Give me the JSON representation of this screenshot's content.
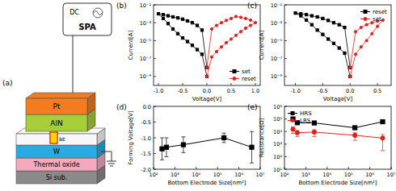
{
  "schematic": {
    "title": "(a)",
    "instrument": [
      "DC",
      "SPA"
    ],
    "electrode": "BE",
    "layers": [
      {
        "label": "Pt",
        "color": "#f47c20"
      },
      {
        "label": "AlN",
        "color": "#a6ce39"
      },
      {
        "label": "W",
        "color": "#29abe2"
      },
      {
        "label": "Thermal oxide",
        "color": "#f4a9bd"
      },
      {
        "label": "Si sub.",
        "color": "#8a8a8a"
      }
    ]
  },
  "chart_data": [
    {
      "type": "line",
      "title": "(b)",
      "x_label": "Voltage[V]",
      "y_label": "Current[A]",
      "log": "y",
      "legend": "lower right",
      "xlim": [
        -1.1,
        1.1
      ],
      "ylim": [
        1e-10,
        0.1
      ],
      "xticks": [
        {
          "value": -1,
          "label": "-1.0"
        },
        {
          "value": -0.5,
          "label": "-0.5"
        },
        {
          "value": 0,
          "label": "0.0"
        },
        {
          "value": 0.5,
          "label": "0.5"
        },
        {
          "value": 1,
          "label": "1.0"
        }
      ],
      "yticks": [
        {
          "value": 0.1,
          "label": "10⁻¹"
        },
        {
          "value": 0.001,
          "label": "10⁻³"
        },
        {
          "value": 1e-05,
          "label": "10⁻⁵"
        },
        {
          "value": 1e-07,
          "label": "10⁻⁷"
        },
        {
          "value": 1e-09,
          "label": "10⁻⁹"
        }
      ],
      "series": [
        {
          "name": "set",
          "color": "#000000",
          "marker": "square",
          "x": [
            0,
            -0.1,
            -0.2,
            -0.3,
            -0.4,
            -0.5,
            -0.6,
            -0.7,
            -0.8,
            -0.9,
            -1.0,
            -0.9,
            -0.8,
            -0.7,
            -0.6,
            -0.5,
            -0.4,
            -0.3,
            -0.2,
            -0.1,
            0
          ],
          "values": [
            1e-09,
            3e-07,
            1e-06,
            3e-06,
            8e-06,
            2e-05,
            6e-05,
            0.0002,
            0.0008,
            0.003,
            0.01,
            0.008,
            0.006,
            0.0045,
            0.0035,
            0.0025,
            0.0016,
            0.001,
            0.0005,
            0.00015,
            1e-08
          ]
        },
        {
          "name": "reset",
          "color": "#e0201b",
          "marker": "circle",
          "x": [
            0,
            0.1,
            0.2,
            0.3,
            0.4,
            0.5,
            0.6,
            0.7,
            0.8,
            0.9,
            1.0,
            0.9,
            0.8,
            0.7,
            0.6,
            0.5,
            0.4,
            0.3,
            0.2,
            0.1,
            0
          ],
          "values": [
            1e-08,
            0.0002,
            0.0005,
            0.001,
            0.0018,
            0.003,
            0.005,
            0.004,
            0.003,
            0.002,
            0.001,
            0.0005,
            0.00025,
            0.0001,
            4e-05,
            1.5e-05,
            6e-06,
            2e-06,
            6e-07,
            1.5e-07,
            1e-09
          ]
        }
      ]
    },
    {
      "type": "line",
      "title": "(c)",
      "x_label": "Voltage[V]",
      "y_label": "Current[A]",
      "log": "y",
      "legend": "upper right",
      "xlim": [
        -1.2,
        0.75
      ],
      "ylim": [
        1e-10,
        0.1
      ],
      "xticks": [
        {
          "value": -1,
          "label": "-1.0"
        },
        {
          "value": -0.5,
          "label": "-0.5"
        },
        {
          "value": 0,
          "label": "0.0"
        },
        {
          "value": 0.5,
          "label": "0.5"
        }
      ],
      "yticks": [
        {
          "value": 0.1,
          "label": "10⁻¹"
        },
        {
          "value": 0.001,
          "label": "10⁻³"
        },
        {
          "value": 1e-05,
          "label": "10⁻⁵"
        },
        {
          "value": 1e-07,
          "label": "10⁻⁷"
        },
        {
          "value": 1e-09,
          "label": "10⁻⁹"
        }
      ],
      "series": [
        {
          "name": "reset",
          "color": "#000000",
          "marker": "square",
          "x": [
            0,
            -0.1,
            -0.2,
            -0.3,
            -0.4,
            -0.5,
            -0.6,
            -0.7,
            -0.8,
            -0.9,
            -1.0,
            -0.9,
            -0.8,
            -0.7,
            -0.6,
            -0.5,
            -0.4,
            -0.3,
            -0.2,
            -0.1,
            0
          ],
          "values": [
            1e-08,
            0.0003,
            0.0006,
            0.001,
            0.0018,
            0.003,
            0.0045,
            0.006,
            0.008,
            0.01,
            0.012,
            0.006,
            0.002,
            0.0006,
            0.00015,
            5e-05,
            1.5e-05,
            5e-06,
            1.5e-06,
            4e-07,
            1e-09
          ]
        },
        {
          "name": "set",
          "color": "#e0201b",
          "marker": "circle",
          "x": [
            0,
            0.1,
            0.2,
            0.3,
            0.4,
            0.5,
            0.6,
            0.5,
            0.4,
            0.3,
            0.2,
            0.1,
            0
          ],
          "values": [
            1e-09,
            3e-07,
            2e-06,
            1e-05,
            6e-05,
            0.0004,
            0.002,
            0.0015,
            0.001,
            0.0006,
            0.0003,
            0.0001,
            1e-08
          ]
        }
      ]
    },
    {
      "type": "line",
      "title": "(d)",
      "x_label": "Bottom Electrode Size[nm²]",
      "y_label": "Forming Voltage[V]",
      "log": "x",
      "xlim": [
        100,
        10000000
      ],
      "ylim": [
        -2,
        0
      ],
      "xticks": [
        {
          "value": 100,
          "label": "10²"
        },
        {
          "value": 1000,
          "label": "10³"
        },
        {
          "value": 10000,
          "label": "10⁴"
        },
        {
          "value": 100000,
          "label": "10⁵"
        },
        {
          "value": 1000000,
          "label": "10⁶"
        },
        {
          "value": 10000000,
          "label": "10⁷"
        }
      ],
      "yticks": [
        {
          "value": -2,
          "label": "-2.0"
        },
        {
          "value": -1.5,
          "label": "-1.5"
        },
        {
          "value": -1,
          "label": "-1.0"
        },
        {
          "value": -0.5,
          "label": "-0.5"
        },
        {
          "value": 0,
          "label": "0.0"
        }
      ],
      "series": [
        {
          "color": "#000000",
          "marker": "square",
          "x": [
            250,
            400,
            2500,
            200000,
            4000000
          ],
          "values": [
            -1.35,
            -1.3,
            -1.22,
            -1.0,
            -1.3
          ],
          "errors": [
            0.35,
            0.3,
            0.25,
            0.15,
            0.5
          ]
        }
      ]
    },
    {
      "type": "line",
      "title": "(e)",
      "x_label": "Bottom Electrode Size[nm²]",
      "y_label": "Resistance[Ω]",
      "log": true,
      "legend": "upper left",
      "xlim": [
        100,
        10000000
      ],
      "ylim": [
        10,
        1000000
      ],
      "xticks": [
        {
          "value": 100,
          "label": "10²"
        },
        {
          "value": 1000,
          "label": "10³"
        },
        {
          "value": 10000,
          "label": "10⁴"
        },
        {
          "value": 100000,
          "label": "10⁵"
        },
        {
          "value": 1000000,
          "label": "10⁶"
        },
        {
          "value": 10000000,
          "label": "10⁷"
        }
      ],
      "yticks": [
        {
          "value": 10,
          "label": "10¹"
        },
        {
          "value": 100,
          "label": "10²"
        },
        {
          "value": 1000,
          "label": "10³"
        },
        {
          "value": 10000,
          "label": "10⁴"
        },
        {
          "value": 100000,
          "label": "10⁵"
        },
        {
          "value": 1000000,
          "label": "10⁶"
        }
      ],
      "series": [
        {
          "name": "HRS",
          "color": "#000000",
          "marker": "square",
          "x": [
            250,
            400,
            2500,
            200000,
            4000000
          ],
          "values": [
            100000,
            50000,
            48000,
            20000,
            60000
          ]
        },
        {
          "name": "LRS",
          "color": "#e0201b",
          "marker": "circle",
          "x": [
            250,
            400,
            2500,
            200000,
            4000000
          ],
          "values": [
            15000,
            8000,
            9000,
            5000,
            3000
          ],
          "errors": [
            8000,
            4000,
            5000,
            3000,
            2700
          ]
        }
      ]
    }
  ]
}
